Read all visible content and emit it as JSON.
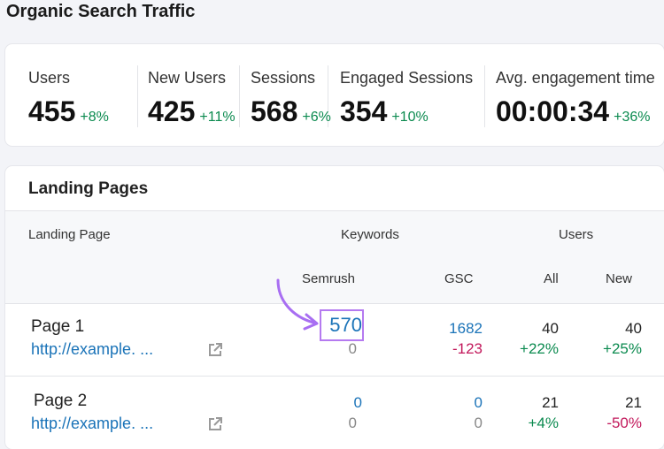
{
  "header": {
    "title": "Organic Search Traffic"
  },
  "metrics": [
    {
      "label": "Users",
      "value": 455,
      "change": "+8%"
    },
    {
      "label": "New Users",
      "value": 425,
      "change": "+11%"
    },
    {
      "label": "Sessions",
      "value": 568,
      "change": "+6%"
    },
    {
      "label": "Engaged Sessions",
      "value": 354,
      "change": "+10%"
    },
    {
      "label": "Avg. engagement time",
      "value": "00:00:34",
      "change": "+36%"
    }
  ],
  "landing_pages": {
    "title": "Landing Pages",
    "columns": {
      "landing_page": "Landing Page",
      "keywords": "Keywords",
      "users": "Users",
      "semrush": "Semrush",
      "gsc": "GSC",
      "all": "All",
      "new": "New"
    },
    "rows": [
      {
        "page": "Page 1",
        "url": "http://example. ...",
        "semrush": 570,
        "semrush_change": 0,
        "gsc": 1682,
        "gsc_change": -123,
        "users_all": 40,
        "users_all_change": "+22%",
        "users_new": 40,
        "users_new_change": "+25%"
      },
      {
        "page": "Page 2",
        "url": "http://example. ...",
        "semrush": 0,
        "semrush_change": 0,
        "gsc": 0,
        "gsc_change": 0,
        "users_all": 21,
        "users_all_change": "+4%",
        "users_new": 21,
        "users_new_change": "-50%"
      }
    ]
  }
}
